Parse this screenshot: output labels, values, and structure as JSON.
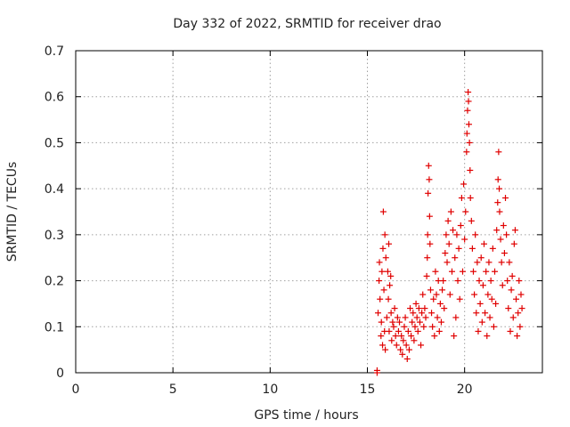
{
  "chart_data": {
    "type": "scatter",
    "title": "Day 332 of 2022, SRMTID for receiver drao",
    "xlabel": "GPS time / hours",
    "ylabel": "SRMTID / TECUs",
    "xlim": [
      0,
      24
    ],
    "ylim": [
      0,
      0.7
    ],
    "xticks": [
      0,
      5,
      10,
      15,
      20
    ],
    "yticks": [
      0,
      0.1,
      0.2,
      0.3,
      0.4,
      0.5,
      0.6,
      0.7
    ],
    "xtick_labels": [
      "0",
      "5",
      "10",
      "15",
      "20"
    ],
    "ytick_labels": [
      "0",
      "0.1",
      "0.2",
      "0.3",
      "0.4",
      "0.5",
      "0.6",
      "0.7"
    ],
    "grid": true,
    "marker": "+",
    "series": [
      {
        "name": "SRMTID",
        "color": "#e00000",
        "points": [
          [
            15.5,
            0.0
          ],
          [
            15.5,
            0.005
          ],
          [
            15.55,
            0.13
          ],
          [
            15.6,
            0.2
          ],
          [
            15.62,
            0.24
          ],
          [
            15.65,
            0.16
          ],
          [
            15.7,
            0.08
          ],
          [
            15.72,
            0.11
          ],
          [
            15.75,
            0.22
          ],
          [
            15.78,
            0.06
          ],
          [
            15.8,
            0.27
          ],
          [
            15.82,
            0.35
          ],
          [
            15.85,
            0.18
          ],
          [
            15.88,
            0.09
          ],
          [
            15.9,
            0.3
          ],
          [
            15.92,
            0.05
          ],
          [
            15.95,
            0.25
          ],
          [
            16.0,
            0.12
          ],
          [
            16.05,
            0.22
          ],
          [
            16.08,
            0.16
          ],
          [
            16.1,
            0.28
          ],
          [
            16.12,
            0.09
          ],
          [
            16.15,
            0.19
          ],
          [
            16.2,
            0.21
          ],
          [
            16.22,
            0.13
          ],
          [
            16.25,
            0.07
          ],
          [
            16.3,
            0.11
          ],
          [
            16.35,
            0.1
          ],
          [
            16.4,
            0.14
          ],
          [
            16.45,
            0.08
          ],
          [
            16.5,
            0.06
          ],
          [
            16.55,
            0.12
          ],
          [
            16.6,
            0.09
          ],
          [
            16.65,
            0.11
          ],
          [
            16.7,
            0.05
          ],
          [
            16.75,
            0.08
          ],
          [
            16.8,
            0.04
          ],
          [
            16.85,
            0.07
          ],
          [
            16.9,
            0.1
          ],
          [
            16.95,
            0.12
          ],
          [
            17.0,
            0.06
          ],
          [
            17.05,
            0.03
          ],
          [
            17.1,
            0.09
          ],
          [
            17.15,
            0.05
          ],
          [
            17.2,
            0.14
          ],
          [
            17.25,
            0.08
          ],
          [
            17.3,
            0.11
          ],
          [
            17.35,
            0.13
          ],
          [
            17.4,
            0.07
          ],
          [
            17.45,
            0.1
          ],
          [
            17.5,
            0.15
          ],
          [
            17.55,
            0.12
          ],
          [
            17.6,
            0.09
          ],
          [
            17.65,
            0.14
          ],
          [
            17.7,
            0.11
          ],
          [
            17.75,
            0.06
          ],
          [
            17.8,
            0.13
          ],
          [
            17.85,
            0.17
          ],
          [
            17.9,
            0.1
          ],
          [
            17.95,
            0.14
          ],
          [
            18.0,
            0.12
          ],
          [
            18.05,
            0.21
          ],
          [
            18.08,
            0.25
          ],
          [
            18.1,
            0.3
          ],
          [
            18.12,
            0.39
          ],
          [
            18.15,
            0.45
          ],
          [
            18.18,
            0.42
          ],
          [
            18.2,
            0.34
          ],
          [
            18.22,
            0.28
          ],
          [
            18.25,
            0.18
          ],
          [
            18.3,
            0.13
          ],
          [
            18.35,
            0.1
          ],
          [
            18.4,
            0.16
          ],
          [
            18.45,
            0.08
          ],
          [
            18.5,
            0.22
          ],
          [
            18.55,
            0.17
          ],
          [
            18.6,
            0.12
          ],
          [
            18.65,
            0.2
          ],
          [
            18.7,
            0.09
          ],
          [
            18.75,
            0.15
          ],
          [
            18.8,
            0.11
          ],
          [
            18.85,
            0.18
          ],
          [
            18.9,
            0.2
          ],
          [
            18.95,
            0.14
          ],
          [
            19.0,
            0.26
          ],
          [
            19.05,
            0.3
          ],
          [
            19.1,
            0.24
          ],
          [
            19.15,
            0.33
          ],
          [
            19.2,
            0.28
          ],
          [
            19.25,
            0.17
          ],
          [
            19.3,
            0.35
          ],
          [
            19.35,
            0.22
          ],
          [
            19.4,
            0.31
          ],
          [
            19.45,
            0.08
          ],
          [
            19.5,
            0.25
          ],
          [
            19.55,
            0.12
          ],
          [
            19.6,
            0.3
          ],
          [
            19.65,
            0.2
          ],
          [
            19.7,
            0.27
          ],
          [
            19.75,
            0.16
          ],
          [
            19.8,
            0.32
          ],
          [
            19.85,
            0.38
          ],
          [
            19.9,
            0.22
          ],
          [
            19.95,
            0.41
          ],
          [
            20.0,
            0.29
          ],
          [
            20.05,
            0.35
          ],
          [
            20.1,
            0.48
          ],
          [
            20.12,
            0.52
          ],
          [
            20.15,
            0.57
          ],
          [
            20.18,
            0.61
          ],
          [
            20.2,
            0.59
          ],
          [
            20.22,
            0.54
          ],
          [
            20.25,
            0.5
          ],
          [
            20.28,
            0.44
          ],
          [
            20.3,
            0.38
          ],
          [
            20.35,
            0.33
          ],
          [
            20.4,
            0.27
          ],
          [
            20.45,
            0.22
          ],
          [
            20.5,
            0.17
          ],
          [
            20.55,
            0.3
          ],
          [
            20.6,
            0.13
          ],
          [
            20.65,
            0.24
          ],
          [
            20.7,
            0.09
          ],
          [
            20.75,
            0.2
          ],
          [
            20.8,
            0.15
          ],
          [
            20.85,
            0.25
          ],
          [
            20.9,
            0.11
          ],
          [
            20.95,
            0.19
          ],
          [
            21.0,
            0.28
          ],
          [
            21.05,
            0.13
          ],
          [
            21.1,
            0.22
          ],
          [
            21.15,
            0.08
          ],
          [
            21.2,
            0.17
          ],
          [
            21.25,
            0.24
          ],
          [
            21.3,
            0.12
          ],
          [
            21.35,
            0.2
          ],
          [
            21.4,
            0.16
          ],
          [
            21.45,
            0.27
          ],
          [
            21.5,
            0.1
          ],
          [
            21.55,
            0.22
          ],
          [
            21.6,
            0.15
          ],
          [
            21.65,
            0.31
          ],
          [
            21.7,
            0.37
          ],
          [
            21.72,
            0.42
          ],
          [
            21.75,
            0.48
          ],
          [
            21.78,
            0.4
          ],
          [
            21.8,
            0.35
          ],
          [
            21.85,
            0.29
          ],
          [
            21.9,
            0.24
          ],
          [
            21.95,
            0.19
          ],
          [
            22.0,
            0.32
          ],
          [
            22.05,
            0.26
          ],
          [
            22.1,
            0.38
          ],
          [
            22.15,
            0.3
          ],
          [
            22.2,
            0.2
          ],
          [
            22.25,
            0.14
          ],
          [
            22.3,
            0.24
          ],
          [
            22.35,
            0.09
          ],
          [
            22.4,
            0.18
          ],
          [
            22.45,
            0.21
          ],
          [
            22.5,
            0.12
          ],
          [
            22.55,
            0.28
          ],
          [
            22.6,
            0.31
          ],
          [
            22.65,
            0.16
          ],
          [
            22.7,
            0.08
          ],
          [
            22.75,
            0.13
          ],
          [
            22.8,
            0.2
          ],
          [
            22.85,
            0.1
          ],
          [
            22.9,
            0.17
          ],
          [
            22.95,
            0.14
          ]
        ]
      }
    ]
  }
}
